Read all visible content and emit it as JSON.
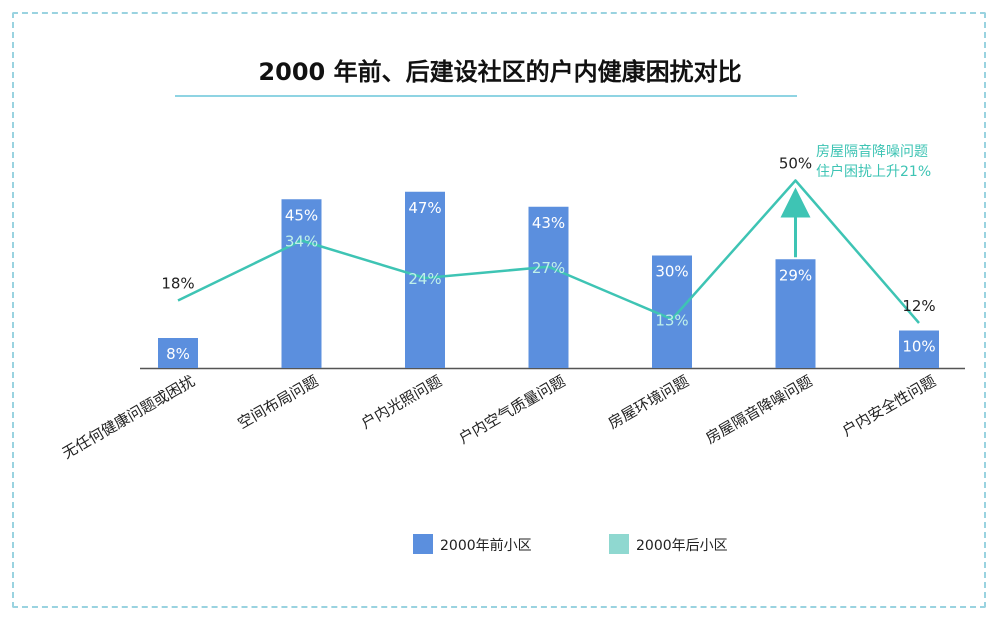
{
  "colors": {
    "bar": "#5b8fde",
    "line": "#3ec4b4",
    "legend_line": "#8fd8d0",
    "title_rule": "#8fd4e3",
    "frame": "#9ad3e0"
  },
  "chart_data": {
    "type": "bar",
    "title": "2000 年前、后建设社区的户内健康困扰对比",
    "categories": [
      "无任何健康问题或困扰",
      "空间布局问题",
      "户内光照问题",
      "户内空气质量问题",
      "房屋环境问题",
      "房屋隔音降噪问题",
      "户内安全性问题"
    ],
    "series": [
      {
        "name": "2000年前小区",
        "kind": "bar",
        "values": [
          8,
          45,
          47,
          43,
          30,
          29,
          10
        ],
        "labels": [
          "8%",
          "45%",
          "47%",
          "43%",
          "30%",
          "29%",
          "10%"
        ]
      },
      {
        "name": "2000年后小区",
        "kind": "line",
        "values": [
          18,
          34,
          24,
          27,
          13,
          50,
          12
        ],
        "labels": [
          "18%",
          "34%",
          "24%",
          "27%",
          "13%",
          "50%",
          "12%"
        ]
      }
    ],
    "annotation": {
      "category": "房屋隔音降噪问题",
      "line1": "房屋隔音降噪问题",
      "line2": "住户困扰上升21%"
    },
    "ylim": [
      0,
      55
    ],
    "grid": false,
    "legend_position": "bottom"
  }
}
